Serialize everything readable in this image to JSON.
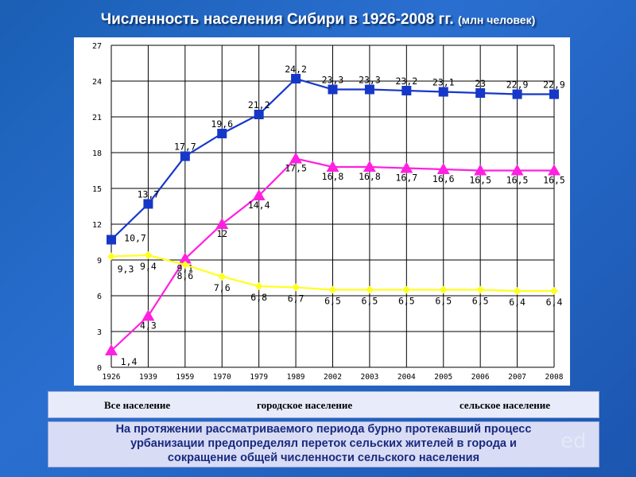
{
  "title": {
    "main": "Численность населения Сибири в 1926-2008 гг.",
    "unit": "(млн человек)"
  },
  "chart_data": {
    "type": "line",
    "categories": [
      "1926",
      "1939",
      "1959",
      "1970",
      "1979",
      "1989",
      "2002",
      "2003",
      "2004",
      "2005",
      "2006",
      "2007",
      "2008"
    ],
    "ylim": [
      0,
      27
    ],
    "yticks": [
      "0",
      "3",
      "6",
      "9",
      "12",
      "15",
      "18",
      "21",
      "24",
      "27"
    ],
    "grid": true,
    "series": [
      {
        "name": "Все население",
        "color": "#1638c8",
        "marker": "square",
        "values": [
          10.7,
          13.7,
          17.7,
          19.6,
          21.2,
          24.2,
          23.3,
          23.3,
          23.2,
          23.1,
          23,
          22.9,
          22.9
        ],
        "labels": [
          "10,7",
          "13,7",
          "17,7",
          "19,6",
          "21,2",
          "24,2",
          "23,3",
          "23,3",
          "23,2",
          "23,1",
          "23",
          "22,9",
          "22,9"
        ]
      },
      {
        "name": "городское население",
        "color": "#ff20e0",
        "marker": "triangle",
        "values": [
          1.4,
          4.3,
          9.1,
          12,
          14.4,
          17.5,
          16.8,
          16.8,
          16.7,
          16.6,
          16.5,
          16.5,
          16.5
        ],
        "labels": [
          "1,4",
          "4,3",
          "9,1",
          "12",
          "14,4",
          "17,5",
          "16,8",
          "16,8",
          "16,7",
          "16,6",
          "16,5",
          "16,5",
          "16,5"
        ]
      },
      {
        "name": "сельское население",
        "color": "#ffff20",
        "marker": "diamond",
        "values": [
          9.3,
          9.4,
          8.6,
          7.6,
          6.8,
          6.7,
          6.5,
          6.5,
          6.5,
          6.5,
          6.5,
          6.4,
          6.4
        ],
        "labels": [
          "9,3",
          "9,4",
          "8,6",
          "7,6",
          "6,8",
          "6,7",
          "6,5",
          "6,5",
          "6,5",
          "6,5",
          "6,5",
          "6,4",
          "6,4"
        ]
      }
    ]
  },
  "note": {
    "line1": "На протяжении рассматриваемого периода бурно протекавший процесс",
    "line2": "урбанизации предопределял переток сельских жителей в города и",
    "line3": "сокращение общей численности сельского населения"
  },
  "watermark": "ed"
}
